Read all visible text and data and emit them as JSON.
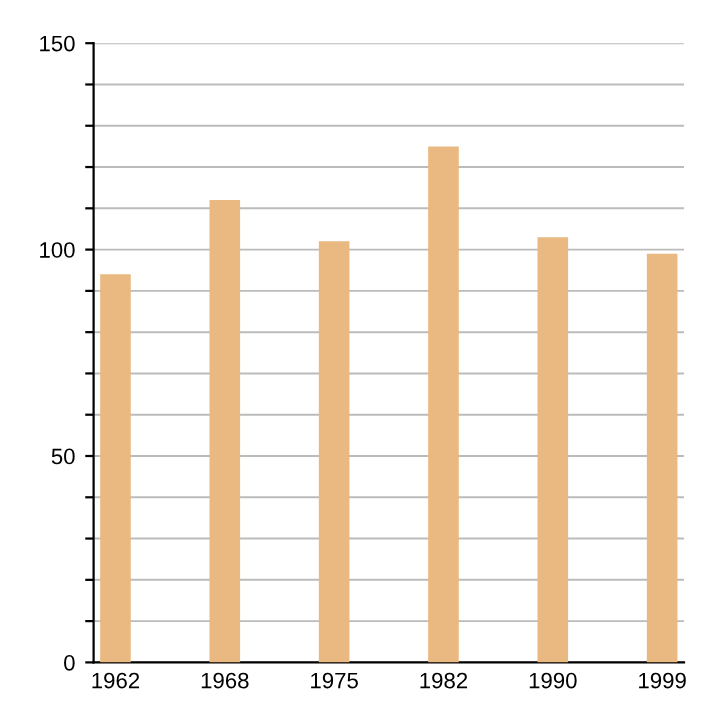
{
  "chart_data": {
    "type": "bar",
    "categories": [
      "1962",
      "1968",
      "1975",
      "1982",
      "1990",
      "1999"
    ],
    "values": [
      94,
      112,
      102,
      125,
      103,
      99
    ],
    "color": "#e9b981",
    "ylim": [
      0,
      150
    ],
    "yticks": [
      0,
      {
        "value": 10,
        "label": null
      },
      {
        "value": 20,
        "label": null
      },
      {
        "value": 30,
        "label": null
      },
      {
        "value": 40,
        "label": null
      },
      50,
      {
        "value": 60,
        "label": null
      },
      {
        "value": 70,
        "label": null
      },
      {
        "value": 80,
        "label": null
      },
      {
        "value": 90,
        "label": null
      },
      100,
      {
        "value": 110,
        "label": null
      },
      {
        "value": 120,
        "label": null
      },
      {
        "value": 130,
        "label": null
      },
      {
        "value": 140,
        "label": null
      },
      150
    ],
    "grid": "y"
  }
}
